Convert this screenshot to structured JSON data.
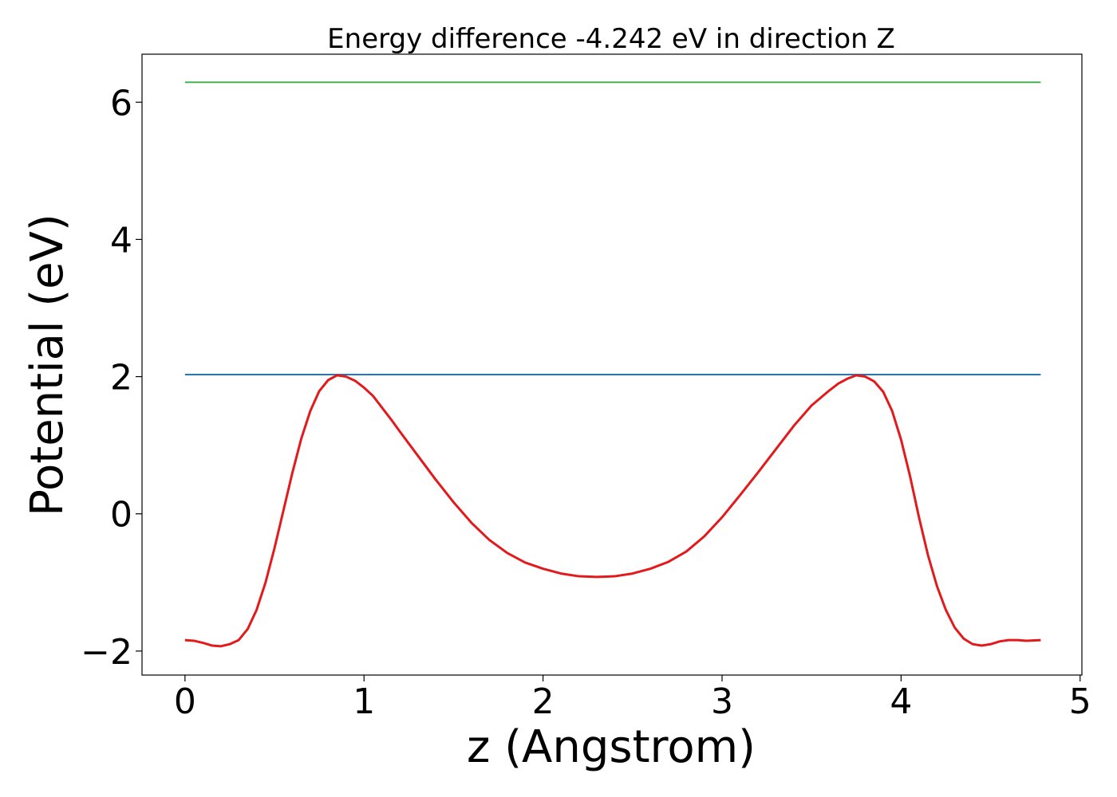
{
  "chart_data": {
    "type": "line",
    "title": "Energy difference -4.242 eV in direction Z",
    "xlabel": "z (Angstrom)",
    "ylabel": "Potential (eV)",
    "xlim": [
      -0.24,
      5.01
    ],
    "ylim": [
      -2.35,
      6.7
    ],
    "xticks": [
      0,
      1,
      2,
      3,
      4,
      5
    ],
    "yticks": [
      -2,
      0,
      2,
      4,
      6
    ],
    "xtick_labels": [
      "0",
      "1",
      "2",
      "3",
      "4",
      "5"
    ],
    "ytick_labels": [
      "−2",
      "0",
      "2",
      "4",
      "6"
    ],
    "grid": false,
    "legend": "none",
    "series": [
      {
        "color": "#4caf50",
        "x": [
          0,
          4.78
        ],
        "y": [
          6.29,
          6.29
        ]
      },
      {
        "color": "#1f77c8",
        "x": [
          0,
          4.78
        ],
        "y": [
          2.03,
          2.03
        ]
      },
      {
        "color": "#e31a1c",
        "x": [
          0,
          0.05,
          0.1,
          0.15,
          0.2,
          0.25,
          0.3,
          0.35,
          0.4,
          0.45,
          0.5,
          0.55,
          0.6,
          0.65,
          0.7,
          0.75,
          0.8,
          0.85,
          0.9,
          0.95,
          1.0,
          1.05,
          1.1,
          1.15,
          1.2,
          1.3,
          1.4,
          1.5,
          1.6,
          1.7,
          1.8,
          1.9,
          2.0,
          2.1,
          2.2,
          2.3,
          2.4,
          2.5,
          2.6,
          2.7,
          2.8,
          2.9,
          3.0,
          3.1,
          3.2,
          3.3,
          3.4,
          3.5,
          3.6,
          3.65,
          3.7,
          3.75,
          3.8,
          3.85,
          3.9,
          3.95,
          4.0,
          4.05,
          4.1,
          4.15,
          4.2,
          4.25,
          4.3,
          4.35,
          4.4,
          4.45,
          4.5,
          4.55,
          4.6,
          4.65,
          4.7,
          4.78
        ],
        "y": [
          -1.84,
          -1.85,
          -1.88,
          -1.92,
          -1.93,
          -1.9,
          -1.84,
          -1.68,
          -1.4,
          -1.0,
          -0.5,
          0.05,
          0.6,
          1.1,
          1.5,
          1.79,
          1.95,
          2.02,
          2.0,
          1.94,
          1.84,
          1.72,
          1.55,
          1.38,
          1.2,
          0.85,
          0.5,
          0.17,
          -0.13,
          -0.38,
          -0.57,
          -0.71,
          -0.8,
          -0.87,
          -0.91,
          -0.92,
          -0.91,
          -0.87,
          -0.8,
          -0.7,
          -0.55,
          -0.33,
          -0.05,
          0.27,
          0.6,
          0.94,
          1.28,
          1.58,
          1.8,
          1.9,
          1.97,
          2.02,
          2.0,
          1.93,
          1.78,
          1.5,
          1.08,
          0.55,
          -0.05,
          -0.6,
          -1.05,
          -1.4,
          -1.66,
          -1.82,
          -1.9,
          -1.92,
          -1.9,
          -1.86,
          -1.84,
          -1.84,
          -1.85,
          -1.84
        ]
      }
    ]
  }
}
